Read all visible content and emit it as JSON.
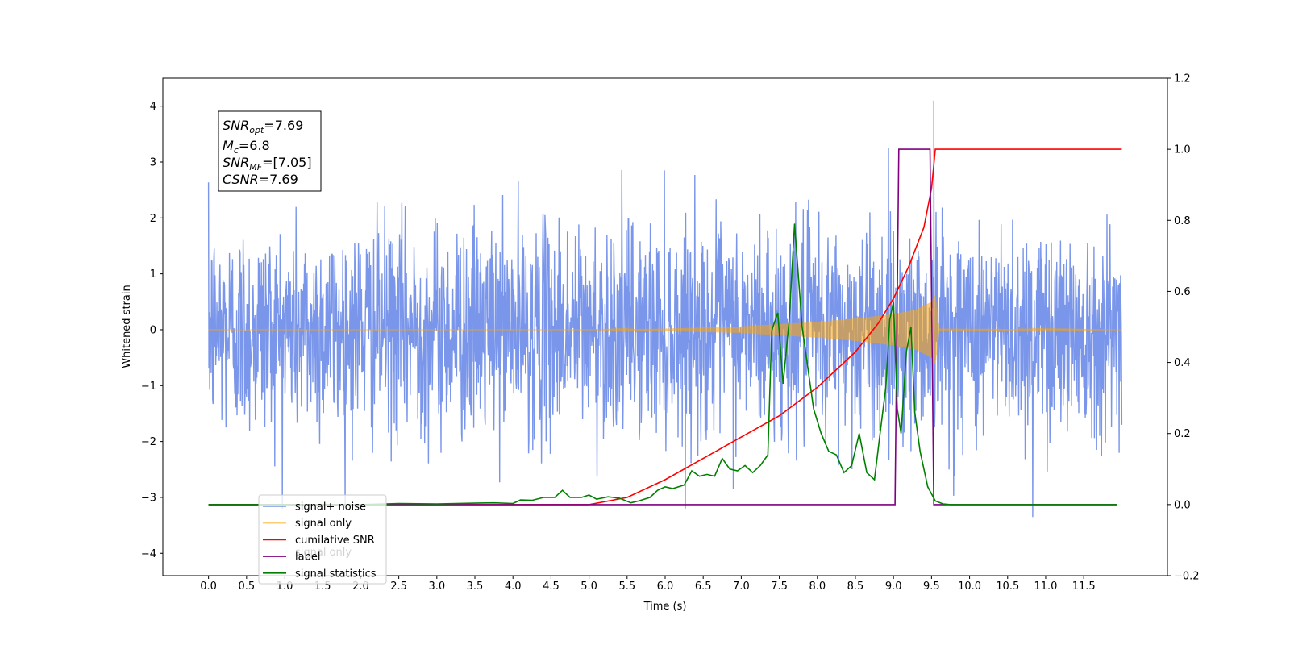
{
  "chart_data": {
    "type": "line",
    "xlabel": "Time (s)",
    "ylabel": "Whitened strain",
    "xlim": [
      -0.6,
      12.6
    ],
    "ylim": [
      -4.4,
      4.5
    ],
    "y2lim": [
      -0.2,
      1.2
    ],
    "x_ticks": [
      0.0,
      0.5,
      1.0,
      1.5,
      2.0,
      2.5,
      3.0,
      3.5,
      4.0,
      4.5,
      5.0,
      5.5,
      6.0,
      6.5,
      7.0,
      7.5,
      8.0,
      8.5,
      9.0,
      9.5,
      10.0,
      10.5,
      11.0,
      11.5
    ],
    "x_tick_labels": [
      "0.0",
      "0.5",
      "1.0",
      "1.5",
      "2.0",
      "2.5",
      "3.0",
      "3.5",
      "4.0",
      "4.5",
      "5.0",
      "5.5",
      "6.0",
      "6.5",
      "7.0",
      "7.5",
      "8.0",
      "8.5",
      "9.0",
      "9.5",
      "10.0",
      "10.5",
      "11.0",
      "11.5"
    ],
    "y_ticks": [
      -4,
      -3,
      -2,
      -1,
      0,
      1,
      2,
      3,
      4
    ],
    "y_tick_labels": [
      "−4",
      "−3",
      "−2",
      "−1",
      "0",
      "1",
      "2",
      "3",
      "4"
    ],
    "y2_ticks": [
      -0.2,
      0.0,
      0.2,
      0.4,
      0.6,
      0.8,
      1.0,
      1.2
    ],
    "y2_tick_labels": [
      "−0.2",
      "0.0",
      "0.2",
      "0.4",
      "0.6",
      "0.8",
      "1.0",
      "1.2"
    ],
    "grid": false,
    "legend_position": "lower-left",
    "annotation": {
      "lines": [
        {
          "base": "SNR",
          "sub": "opt",
          "value": "=7.69"
        },
        {
          "base": "M",
          "sub": "c",
          "value": "=6.8"
        },
        {
          "base": "SNR",
          "sub": "MF",
          "value": "=[7.05]"
        },
        {
          "base": "CSNR",
          "sub": "",
          "value": "=7.69"
        }
      ]
    },
    "legend": [
      {
        "label": "signal+ noise",
        "color": "#4169e1"
      },
      {
        "label": "signal only",
        "color": "#ffa500"
      },
      {
        "label": "cumilative SNR",
        "color": "#ff0000"
      },
      {
        "label": "label",
        "color": "#800080"
      },
      {
        "label": "signal statistics",
        "color": "#008000"
      }
    ],
    "hidden_legend_fragment": "signal only",
    "series": [
      {
        "name": "signal+ noise",
        "axis": "left",
        "color": "#4169e1",
        "x_start": 0.0,
        "x_end": 12.0,
        "noise_sigma": 0.95,
        "max_value": 4.1,
        "max_x": 9.53,
        "min_value": -3.35,
        "min_x": 10.83
      },
      {
        "name": "signal only",
        "axis": "left",
        "color": "#ffa500",
        "x_start": 0.0,
        "x_end": 12.0,
        "envelope": {
          "x": [
            0.0,
            5.0,
            6.0,
            7.0,
            7.5,
            8.0,
            8.5,
            9.0,
            9.3,
            9.5,
            9.55,
            9.6,
            12.0
          ],
          "amp": [
            0.0,
            0.0,
            0.02,
            0.06,
            0.1,
            0.14,
            0.2,
            0.28,
            0.36,
            0.5,
            0.62,
            0.02,
            0.0
          ]
        }
      },
      {
        "name": "cumilative SNR",
        "axis": "right",
        "color": "#ff0000",
        "x": [
          0.0,
          5.0,
          5.5,
          6.0,
          6.5,
          7.0,
          7.5,
          8.0,
          8.5,
          8.8,
          9.0,
          9.2,
          9.4,
          9.5,
          9.55,
          12.0
        ],
        "y": [
          0.0,
          0.0,
          0.02,
          0.07,
          0.13,
          0.19,
          0.25,
          0.33,
          0.43,
          0.51,
          0.58,
          0.67,
          0.78,
          0.89,
          1.0,
          1.0
        ]
      },
      {
        "name": "label",
        "axis": "right",
        "color": "#800080",
        "x": [
          0.0,
          9.02,
          9.07,
          9.48,
          9.53,
          11.94
        ],
        "y": [
          0.0,
          0.0,
          1.0,
          1.0,
          0.0,
          0.0
        ]
      },
      {
        "name": "signal statistics",
        "axis": "right",
        "color": "#008000",
        "x": [
          0.0,
          2.0,
          2.5,
          3.0,
          3.5,
          3.75,
          4.0,
          4.1,
          4.25,
          4.4,
          4.55,
          4.65,
          4.75,
          4.9,
          5.0,
          5.1,
          5.25,
          5.4,
          5.55,
          5.65,
          5.8,
          5.9,
          6.0,
          6.1,
          6.25,
          6.35,
          6.45,
          6.55,
          6.65,
          6.75,
          6.85,
          6.95,
          7.05,
          7.15,
          7.25,
          7.35,
          7.4,
          7.48,
          7.55,
          7.63,
          7.7,
          7.8,
          7.95,
          8.05,
          8.15,
          8.25,
          8.35,
          8.45,
          8.55,
          8.65,
          8.75,
          8.83,
          8.9,
          8.95,
          9.0,
          9.05,
          9.1,
          9.17,
          9.23,
          9.28,
          9.35,
          9.45,
          9.55,
          9.65,
          9.75,
          11.94
        ],
        "y": [
          0.0,
          0.0,
          0.003,
          0.002,
          0.004,
          0.005,
          0.003,
          0.013,
          0.012,
          0.02,
          0.02,
          0.04,
          0.02,
          0.02,
          0.027,
          0.015,
          0.022,
          0.018,
          0.005,
          0.01,
          0.02,
          0.04,
          0.05,
          0.045,
          0.055,
          0.095,
          0.08,
          0.085,
          0.08,
          0.13,
          0.1,
          0.095,
          0.11,
          0.09,
          0.11,
          0.14,
          0.49,
          0.54,
          0.34,
          0.52,
          0.79,
          0.5,
          0.27,
          0.2,
          0.15,
          0.14,
          0.09,
          0.11,
          0.2,
          0.09,
          0.07,
          0.21,
          0.33,
          0.52,
          0.57,
          0.27,
          0.2,
          0.43,
          0.5,
          0.26,
          0.15,
          0.05,
          0.01,
          0.002,
          0.0,
          0.0
        ]
      }
    ]
  }
}
